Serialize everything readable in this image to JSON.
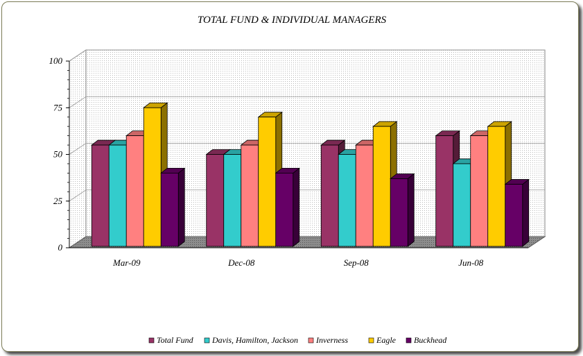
{
  "chart_data": {
    "type": "bar",
    "style": "3d-clustered-column",
    "title": "TOTAL FUND & INDIVIDUAL MANAGERS",
    "categories": [
      "Mar-09",
      "Dec-08",
      "Sep-08",
      "Jun-08"
    ],
    "series": [
      {
        "name": "Total Fund",
        "values": [
          55,
          50,
          55,
          60
        ],
        "color": "#993366"
      },
      {
        "name": "Davis, Hamilton, Jackson",
        "values": [
          55,
          50,
          50,
          45
        ],
        "color": "#33CCCC"
      },
      {
        "name": "Inverness",
        "values": [
          60,
          55,
          55,
          60
        ],
        "color": "#FF8080"
      },
      {
        "name": "Eagle",
        "values": [
          75,
          70,
          65,
          65
        ],
        "color": "#FFCC00"
      },
      {
        "name": "Buckhead",
        "values": [
          40,
          40,
          37,
          34
        ],
        "color": "#660066"
      }
    ],
    "ylim": [
      0,
      100
    ],
    "yticks": [
      "0",
      "25",
      "50",
      "75",
      "100"
    ],
    "xlabel": "",
    "ylabel": "",
    "grid": true,
    "legend_position": "bottom"
  }
}
